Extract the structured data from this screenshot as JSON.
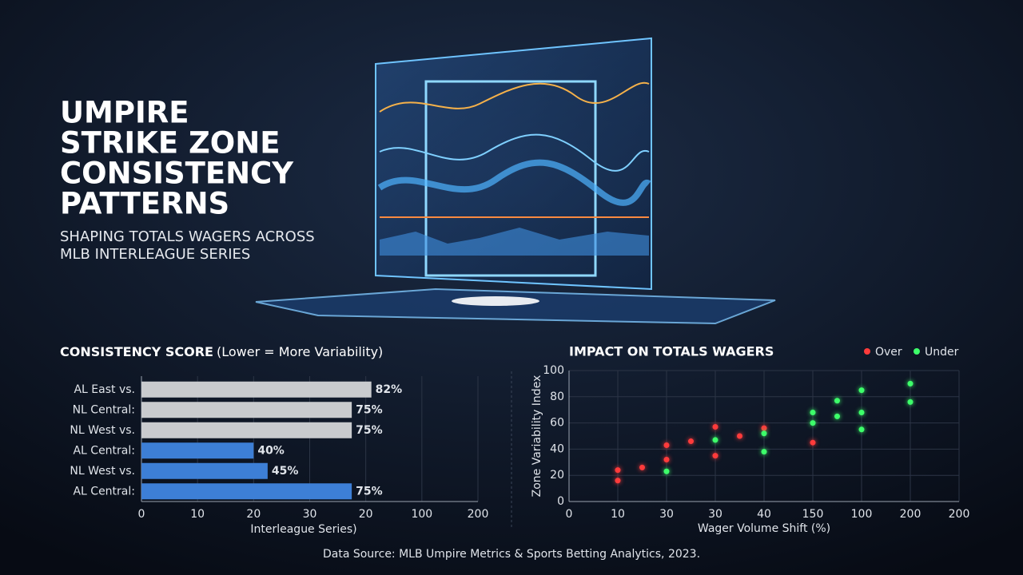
{
  "title_lines": [
    "UMPIRE",
    "STRIKE ZONE",
    "CONSISTENCY",
    "PATTERNS"
  ],
  "subtitle_lines": [
    "SHAPING TOTALS WAGERS ACROSS",
    "MLB INTERLEAGUE SERIES"
  ],
  "source": "Data Source: MLB Umpire Metrics & Sports Betting Analytics, 2023.",
  "chart_data": [
    {
      "type": "hbar",
      "title": "CONSISTENCY SCORE",
      "subtitle": "(Lower = More Variability)",
      "categories": [
        "AL East vs.",
        "NL Central:",
        "NL West vs.",
        "AL Central:",
        "NL West vs.",
        "AL Central:"
      ],
      "values": [
        82,
        75,
        75,
        40,
        45,
        75
      ],
      "value_labels": [
        "82%",
        "75%",
        "75%",
        "40%",
        "45%",
        "75%"
      ],
      "colors": [
        "#c9cbce",
        "#c9cbce",
        "#c9cbce",
        "#3d7fd6",
        "#3d7fd6",
        "#3d7fd6"
      ],
      "xlabel": "Interleague Series)",
      "xlim": [
        0,
        120
      ],
      "xticks": [
        0,
        {
          "value": 20,
          "label": "10"
        },
        {
          "value": 40,
          "label": "20"
        },
        {
          "value": 60,
          "label": "30"
        },
        {
          "value": 80,
          "label": "20"
        },
        {
          "value": 100,
          "label": "100"
        },
        {
          "value": 120,
          "label": "200"
        }
      ],
      "grid": true
    },
    {
      "type": "scatter",
      "title": "IMPACT ON TOTALS WAGERS",
      "xlabel": "Wager Volume Shift (%)",
      "ylabel": "Zone Variability Index",
      "series": [
        {
          "name": "Over",
          "color": "#ff3b3b",
          "x": [
            1.0,
            1.0,
            1.5,
            2.0,
            2.0,
            2.5,
            3.0,
            3.0,
            3.5,
            4.0,
            5.0
          ],
          "values": [
            24,
            16,
            26,
            43,
            32,
            46,
            57,
            35,
            50,
            56,
            45
          ]
        },
        {
          "name": "Under",
          "color": "#3dff6a",
          "x": [
            2.0,
            3.0,
            4.0,
            4.0,
            5.0,
            5.0,
            5.5,
            5.5,
            6.0,
            6.0,
            6.0,
            7.0,
            7.0
          ],
          "values": [
            23,
            47,
            38,
            52,
            68,
            60,
            77,
            65,
            85,
            68,
            55,
            90,
            76
          ]
        }
      ],
      "xlim": [
        0,
        8
      ],
      "xticks": [
        0,
        {
          "value": 1,
          "label": "10"
        },
        {
          "value": 2,
          "label": "30"
        },
        {
          "value": 3,
          "label": "30"
        },
        {
          "value": 4,
          "label": "40"
        },
        {
          "value": 5,
          "label": "150"
        },
        {
          "value": 6,
          "label": "100"
        },
        {
          "value": 7,
          "label": "200"
        },
        {
          "value": 8,
          "label": "200"
        }
      ],
      "ylim": [
        0,
        100
      ],
      "yticks": [
        0,
        20,
        40,
        60,
        80,
        100
      ],
      "grid": true,
      "legend": "top-right"
    }
  ]
}
